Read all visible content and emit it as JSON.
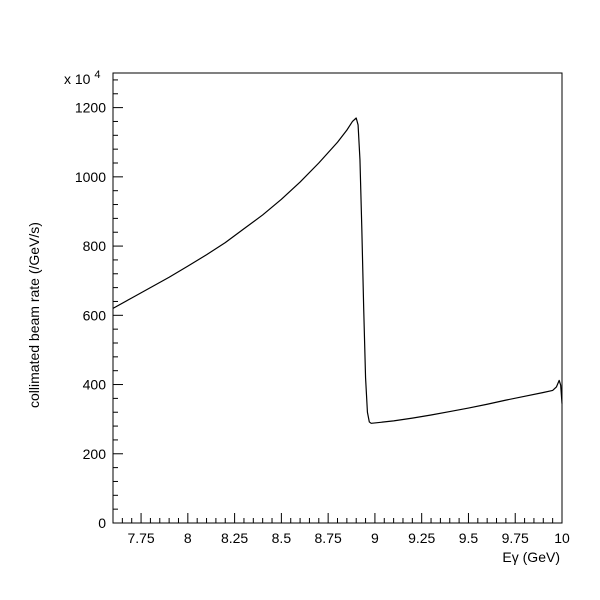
{
  "chart_data": {
    "type": "line",
    "title": "",
    "xlabel": "Eγ (GeV)",
    "ylabel": "collimated beam rate (/GeV/s)",
    "y_multiplier_label": "x 10",
    "y_multiplier_exponent": "4",
    "xlim": [
      7.6,
      10.0
    ],
    "ylim": [
      0,
      1300
    ],
    "grid": false,
    "legend": "none",
    "x_ticks": [
      {
        "value": 7.75,
        "label": "7.75"
      },
      {
        "value": 8.0,
        "label": "8"
      },
      {
        "value": 8.25,
        "label": "8.25"
      },
      {
        "value": 8.5,
        "label": "8.5"
      },
      {
        "value": 8.75,
        "label": "8.75"
      },
      {
        "value": 9.0,
        "label": "9"
      },
      {
        "value": 9.25,
        "label": "9.25"
      },
      {
        "value": 9.5,
        "label": "9.5"
      },
      {
        "value": 9.75,
        "label": "9.75"
      },
      {
        "value": 10.0,
        "label": "10"
      }
    ],
    "y_ticks": [
      {
        "value": 0,
        "label": "0"
      },
      {
        "value": 200,
        "label": "200"
      },
      {
        "value": 400,
        "label": "400"
      },
      {
        "value": 600,
        "label": "600"
      },
      {
        "value": 800,
        "label": "800"
      },
      {
        "value": 1000,
        "label": "1000"
      },
      {
        "value": 1200,
        "label": "1200"
      }
    ],
    "series": [
      {
        "color": "#000000",
        "points": [
          [
            7.6,
            620
          ],
          [
            7.7,
            650
          ],
          [
            7.8,
            680
          ],
          [
            7.9,
            710
          ],
          [
            8.0,
            742
          ],
          [
            8.1,
            775
          ],
          [
            8.2,
            810
          ],
          [
            8.3,
            850
          ],
          [
            8.4,
            890
          ],
          [
            8.5,
            935
          ],
          [
            8.6,
            985
          ],
          [
            8.7,
            1040
          ],
          [
            8.8,
            1100
          ],
          [
            8.85,
            1135
          ],
          [
            8.88,
            1160
          ],
          [
            8.9,
            1170
          ],
          [
            8.91,
            1150
          ],
          [
            8.92,
            1050
          ],
          [
            8.93,
            850
          ],
          [
            8.94,
            620
          ],
          [
            8.95,
            420
          ],
          [
            8.96,
            320
          ],
          [
            8.97,
            292
          ],
          [
            8.98,
            288
          ],
          [
            9.0,
            289
          ],
          [
            9.1,
            295
          ],
          [
            9.2,
            303
          ],
          [
            9.3,
            312
          ],
          [
            9.4,
            322
          ],
          [
            9.5,
            332
          ],
          [
            9.6,
            343
          ],
          [
            9.7,
            355
          ],
          [
            9.8,
            366
          ],
          [
            9.9,
            377
          ],
          [
            9.95,
            383
          ],
          [
            9.97,
            393
          ],
          [
            9.985,
            412
          ],
          [
            9.993,
            398
          ],
          [
            10.0,
            345
          ]
        ]
      }
    ]
  }
}
